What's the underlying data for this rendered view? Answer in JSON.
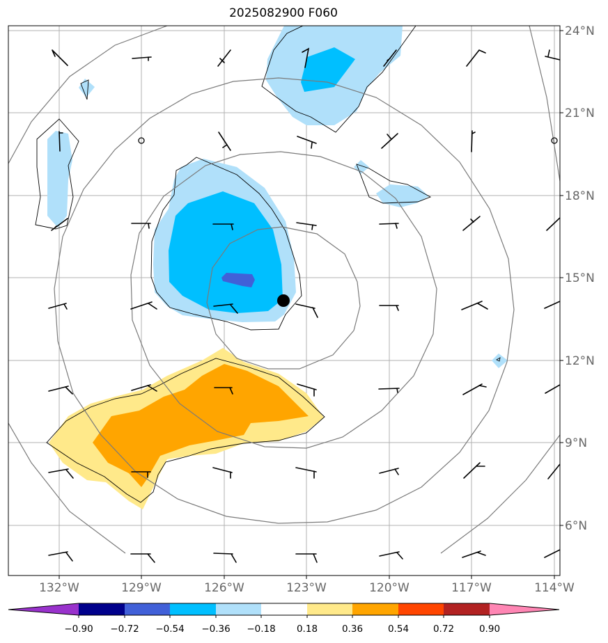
{
  "title": "2025082900 F060",
  "lon_ticks": [
    "132°W",
    "129°W",
    "126°W",
    "123°W",
    "120°W",
    "117°W",
    "114°W"
  ],
  "lat_ticks": [
    "24°N",
    "21°N",
    "18°N",
    "15°N",
    "12°N",
    "9°N",
    "6°N"
  ],
  "colorbar": {
    "labels": [
      "−0.90",
      "−0.72",
      "−0.54",
      "−0.36",
      "−0.18",
      "0.18",
      "0.36",
      "0.54",
      "0.72",
      "0.90"
    ],
    "colors": [
      "#9932cc",
      "#00008b",
      "#4160d8",
      "#00bfff",
      "#b0e0fa",
      "#ffffff",
      "#ffe98a",
      "#ffa500",
      "#ff4500",
      "#b22222",
      "#ff86b4"
    ]
  },
  "colors": {
    "light_blue": "#b0e0fa",
    "deep_sky_blue": "#00bfff",
    "royal_blue": "#4160d8",
    "light_yellow": "#ffe98a",
    "orange": "#ffa500",
    "grid": "#b0b0b0",
    "range_rings": "#7a7a7a"
  },
  "storm_center": {
    "lon": "123.9°W",
    "lat": "14.2°N"
  }
}
